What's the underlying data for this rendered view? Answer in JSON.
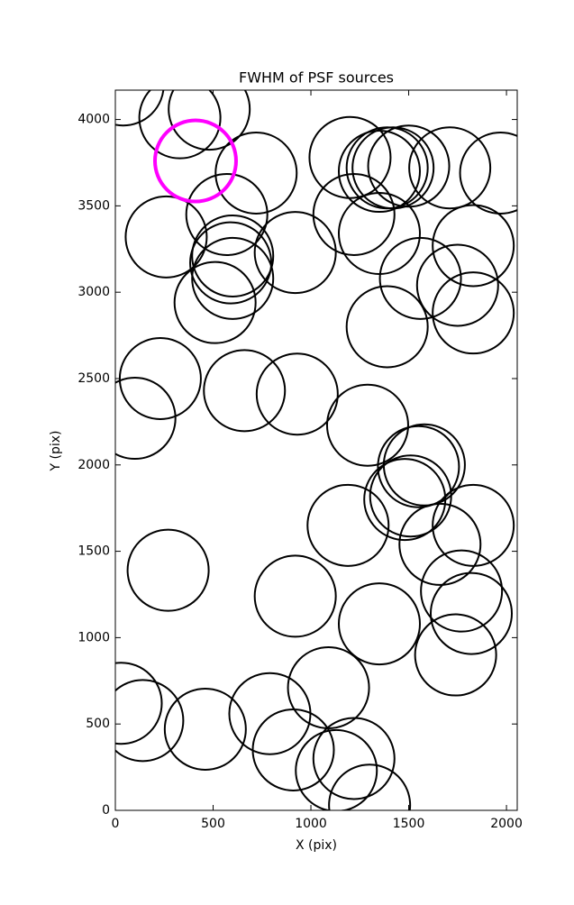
{
  "chart_data": {
    "type": "scatter",
    "title": "FWHM of PSF sources",
    "x_label": "X (pix)",
    "y_label": "Y (pix)",
    "series": [
      {
        "color": "#000000",
        "x": [
          40,
          330,
          480,
          720,
          570,
          260,
          590,
          600,
          600,
          510,
          920,
          1200,
          1220,
          1350,
          1390,
          1420,
          1500,
          1710,
          1970,
          1350,
          1560,
          1830,
          1750,
          1830,
          1390,
          230,
          100,
          660,
          930,
          1290,
          1580,
          1550,
          1480,
          1510,
          1190,
          1830,
          1660,
          270,
          920,
          1770,
          1820,
          1350,
          1740,
          1090,
          30,
          140,
          460,
          790,
          910,
          1220,
          1130,
          1300
        ],
        "y": [
          4200,
          4010,
          4060,
          3690,
          3450,
          3320,
          3170,
          3210,
          3080,
          2940,
          3230,
          3780,
          3450,
          3700,
          3720,
          3720,
          3730,
          3720,
          3690,
          3340,
          3080,
          3270,
          3040,
          2880,
          2800,
          2500,
          2270,
          2430,
          2410,
          2230,
          2000,
          1990,
          1800,
          1820,
          1650,
          1650,
          1540,
          1390,
          1240,
          1270,
          1140,
          1080,
          900,
          710,
          620,
          520,
          470,
          560,
          350,
          300,
          230,
          30
        ]
      },
      {
        "color": "#ff00ff",
        "x": [
          410
        ],
        "y": [
          3760
        ]
      }
    ],
    "xlim": [
      0,
      2055
    ],
    "ylim": [
      0,
      4170
    ],
    "xticks": [
      0,
      500,
      1000,
      1500,
      2000
    ],
    "yticks": [
      0,
      500,
      1000,
      1500,
      2000,
      2500,
      3000,
      3500,
      4000
    ]
  }
}
